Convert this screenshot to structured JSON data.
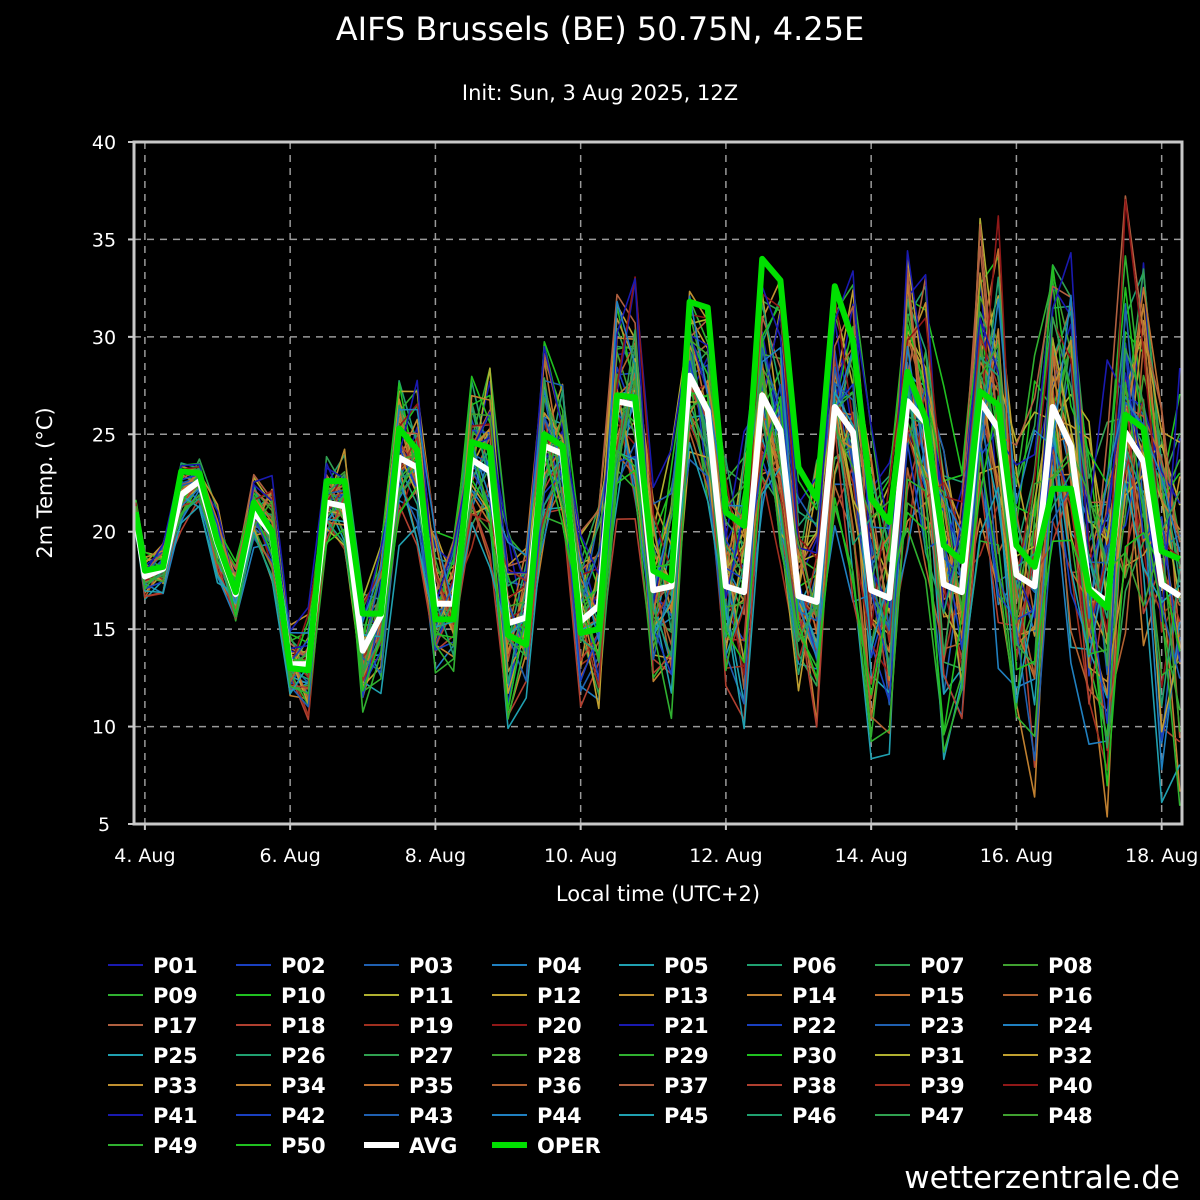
{
  "chart_data": {
    "type": "line",
    "title": "AIFS Brussels (BE) 50.75N, 4.25E",
    "subtitle": "Init: Sun, 3 Aug 2025, 12Z",
    "xlabel": "Local time (UTC+2)",
    "ylabel": "2m Temp. (°C)",
    "ylim": [
      5,
      40
    ],
    "yticks": [
      5,
      10,
      15,
      20,
      25,
      30,
      35,
      40
    ],
    "xlim": [
      3.85,
      18.28
    ],
    "xticks": [
      {
        "x": 4,
        "label": "4. Aug"
      },
      {
        "x": 6,
        "label": "6. Aug"
      },
      {
        "x": 8,
        "label": "8. Aug"
      },
      {
        "x": 10,
        "label": "10. Aug"
      },
      {
        "x": 12,
        "label": "12. Aug"
      },
      {
        "x": 14,
        "label": "14. Aug"
      },
      {
        "x": 16,
        "label": "16. Aug"
      },
      {
        "x": 18,
        "label": "18. Aug"
      }
    ],
    "grid": true,
    "legend_position": "bottom",
    "x": [
      3.875,
      4.0,
      4.25,
      4.5,
      4.75,
      5.0,
      5.25,
      5.5,
      5.75,
      6.0,
      6.25,
      6.5,
      6.75,
      7.0,
      7.25,
      7.5,
      7.75,
      8.0,
      8.25,
      8.5,
      8.75,
      9.0,
      9.25,
      9.5,
      9.75,
      10.0,
      10.25,
      10.5,
      10.75,
      11.0,
      11.25,
      11.5,
      11.75,
      12.0,
      12.25,
      12.5,
      12.75,
      13.0,
      13.25,
      13.5,
      13.75,
      14.0,
      14.25,
      14.5,
      14.75,
      15.0,
      15.25,
      15.5,
      15.75,
      16.0,
      16.25,
      16.5,
      16.75,
      17.0,
      17.25,
      17.5,
      17.75,
      18.0,
      18.25
    ],
    "avg": [
      20.7,
      17.7,
      18.1,
      21.9,
      22.6,
      19.4,
      16.8,
      21.0,
      19.9,
      13.2,
      13.2,
      21.5,
      21.3,
      13.9,
      15.7,
      23.8,
      23.3,
      16.3,
      16.3,
      23.7,
      23.1,
      15.3,
      15.6,
      24.4,
      24.0,
      15.4,
      16.2,
      26.7,
      26.5,
      17.0,
      17.2,
      28.0,
      26.2,
      17.2,
      16.9,
      27.0,
      25.2,
      16.7,
      16.4,
      26.4,
      25.1,
      17.0,
      16.6,
      26.7,
      25.6,
      17.3,
      16.9,
      26.7,
      25.3,
      17.8,
      17.2,
      26.4,
      24.4,
      17.1,
      16.4,
      25.1,
      23.6,
      17.3,
      16.7
    ],
    "oper": [
      21.0,
      18.0,
      18.2,
      23.1,
      23.0,
      19.5,
      16.9,
      21.5,
      20.0,
      13.0,
      12.9,
      22.6,
      22.6,
      15.8,
      15.8,
      25.3,
      24.2,
      15.5,
      15.5,
      24.6,
      24.3,
      14.7,
      14.2,
      25.0,
      24.4,
      14.8,
      15.0,
      27.0,
      26.9,
      18.0,
      17.5,
      31.8,
      31.5,
      21.0,
      20.3,
      34.0,
      32.9,
      23.3,
      21.7,
      32.6,
      29.8,
      21.7,
      20.5,
      28.2,
      25.8,
      19.3,
      18.5,
      27.2,
      26.5,
      19.3,
      18.2,
      22.2,
      22.2,
      17.0,
      16.1,
      26.0,
      25.3,
      19.0,
      18.6
    ],
    "series": [
      {
        "name": "P01",
        "color": "#1a1ab0"
      },
      {
        "name": "P02",
        "color": "#1a40c0"
      },
      {
        "name": "P03",
        "color": "#2060b0"
      },
      {
        "name": "P04",
        "color": "#2080c0"
      },
      {
        "name": "P05",
        "color": "#20a0b0"
      },
      {
        "name": "P06",
        "color": "#20a070"
      },
      {
        "name": "P07",
        "color": "#30a050"
      },
      {
        "name": "P08",
        "color": "#40a030"
      },
      {
        "name": "P09",
        "color": "#30b030"
      },
      {
        "name": "P10",
        "color": "#20c020"
      },
      {
        "name": "P11",
        "color": "#b0b030"
      },
      {
        "name": "P12",
        "color": "#c0a030"
      },
      {
        "name": "P13",
        "color": "#c09030"
      },
      {
        "name": "P14",
        "color": "#c08030"
      },
      {
        "name": "P15",
        "color": "#c07030"
      },
      {
        "name": "P16",
        "color": "#b06030"
      },
      {
        "name": "P17",
        "color": "#b06040"
      },
      {
        "name": "P18",
        "color": "#b04030"
      },
      {
        "name": "P19",
        "color": "#a03020"
      },
      {
        "name": "P20",
        "color": "#901818"
      },
      {
        "name": "P21",
        "color": "#1a1ab0"
      },
      {
        "name": "P22",
        "color": "#1a40c0"
      },
      {
        "name": "P23",
        "color": "#2060b0"
      },
      {
        "name": "P24",
        "color": "#2080c0"
      },
      {
        "name": "P25",
        "color": "#20a0b0"
      },
      {
        "name": "P26",
        "color": "#20a070"
      },
      {
        "name": "P27",
        "color": "#30a050"
      },
      {
        "name": "P28",
        "color": "#40a030"
      },
      {
        "name": "P29",
        "color": "#30b030"
      },
      {
        "name": "P30",
        "color": "#20c020"
      },
      {
        "name": "P31",
        "color": "#b0b030"
      },
      {
        "name": "P32",
        "color": "#c0a030"
      },
      {
        "name": "P33",
        "color": "#c09030"
      },
      {
        "name": "P34",
        "color": "#c08030"
      },
      {
        "name": "P35",
        "color": "#c07030"
      },
      {
        "name": "P36",
        "color": "#b06030"
      },
      {
        "name": "P37",
        "color": "#b06040"
      },
      {
        "name": "P38",
        "color": "#b04030"
      },
      {
        "name": "P39",
        "color": "#a03020"
      },
      {
        "name": "P40",
        "color": "#901818"
      },
      {
        "name": "P41",
        "color": "#1a1ab0"
      },
      {
        "name": "P42",
        "color": "#1a40c0"
      },
      {
        "name": "P43",
        "color": "#2060b0"
      },
      {
        "name": "P44",
        "color": "#2080c0"
      },
      {
        "name": "P45",
        "color": "#20a0b0"
      },
      {
        "name": "P46",
        "color": "#20a070"
      },
      {
        "name": "P47",
        "color": "#30a050"
      },
      {
        "name": "P48",
        "color": "#40a030"
      },
      {
        "name": "P49",
        "color": "#30b030"
      },
      {
        "name": "P50",
        "color": "#20c020"
      }
    ],
    "avg_series": {
      "name": "AVG",
      "color": "#ffffff"
    },
    "oper_series": {
      "name": "OPER",
      "color": "#00e000"
    }
  },
  "credit": "wetterzentrale.de"
}
